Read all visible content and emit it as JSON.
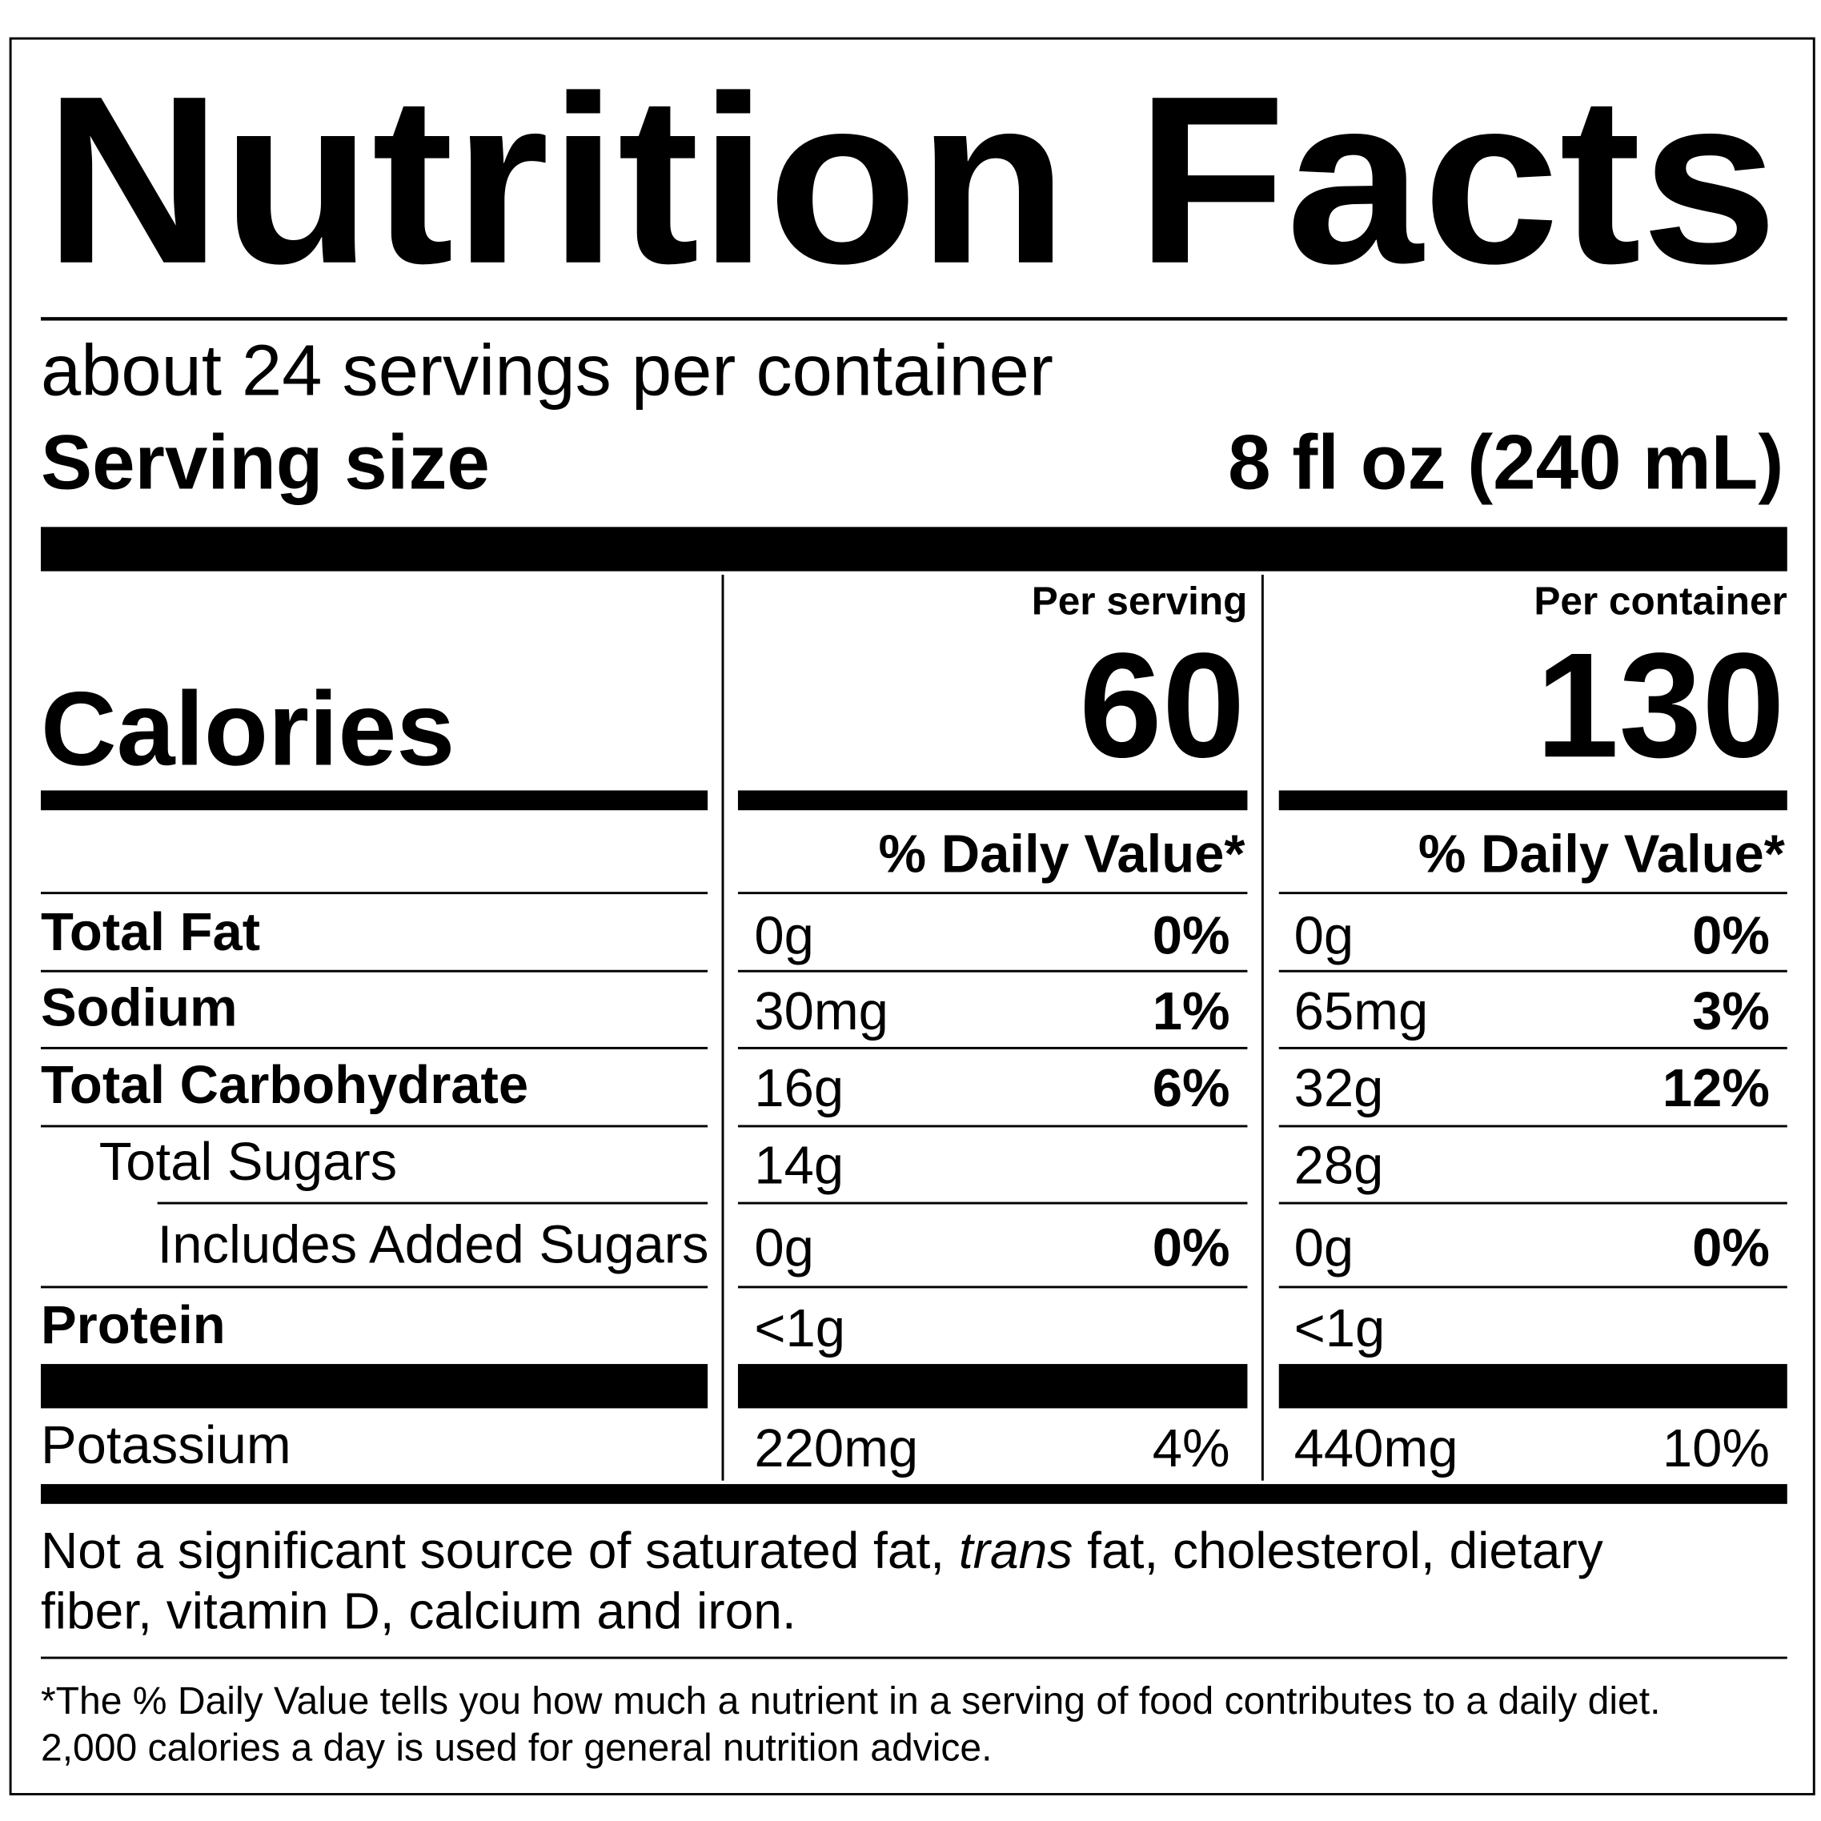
{
  "title": "Nutrition Facts",
  "servings": "about 24 servings per container",
  "serving_size": {
    "label": "Serving size",
    "value": "8 fl oz (240 mL)"
  },
  "calories": {
    "label": "Calories",
    "columns": [
      {
        "header": "Per serving",
        "value": "60",
        "dv_header": "% Daily Value*"
      },
      {
        "header": "Per container",
        "value": "130",
        "dv_header": "% Daily Value*"
      }
    ]
  },
  "rows": [
    {
      "name": "Total Fat",
      "cells": [
        [
          "0g",
          "0%"
        ],
        [
          "0g",
          "0%"
        ]
      ]
    },
    {
      "name": "Sodium",
      "cells": [
        [
          "30mg",
          "1%"
        ],
        [
          "65mg",
          "3%"
        ]
      ]
    },
    {
      "name": "Total Carbohydrate",
      "cells": [
        [
          "16g",
          "6%"
        ],
        [
          "32g",
          "12%"
        ]
      ]
    },
    {
      "name": "Total Sugars",
      "cells": [
        [
          "14g"
        ],
        [
          "28g"
        ]
      ]
    },
    {
      "name": "Includes Added Sugars",
      "cells": [
        [
          "0g",
          "0%"
        ],
        [
          "0g",
          "0%"
        ]
      ]
    },
    {
      "name": "Protein",
      "cells": [
        [
          "<1g"
        ],
        [
          "<1g"
        ]
      ]
    },
    {
      "name": "Potassium",
      "cells": [
        [
          "220mg",
          "4%"
        ],
        [
          "440mg",
          "10%"
        ]
      ]
    }
  ],
  "note": {
    "lines": [
      [
        "Not a significant source of saturated fat, ",
        "trans",
        " fat, cholesterol, dietary"
      ],
      [
        "fiber, vitamin D, calcium and iron."
      ]
    ]
  },
  "footnote": {
    "lines": [
      "*The % Daily Value tells you how much a nutrient in a serving of food contributes to a daily diet.",
      "2,000 calories a day is used for general nutrition advice."
    ]
  }
}
